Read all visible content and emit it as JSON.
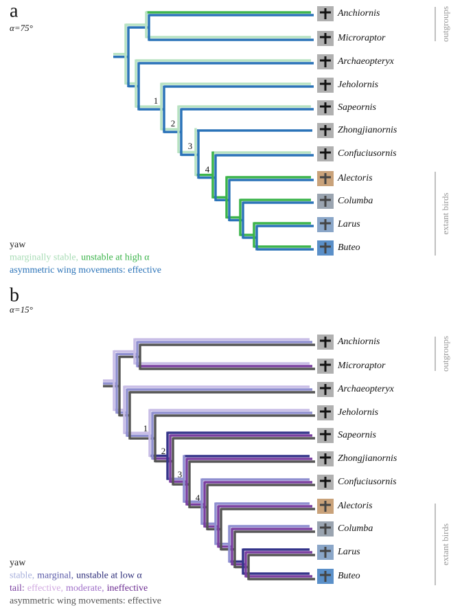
{
  "panels": [
    {
      "label": "a",
      "angle": "α=75°",
      "taxa": [
        "Anchiornis",
        "Microraptor",
        "Archaeopteryx",
        "Jeholornis",
        "Sapeornis",
        "Zhongjianornis",
        "Confuciusornis",
        "Alectoris",
        "Columba",
        "Larus",
        "Buteo"
      ],
      "node_labels": [
        "1",
        "2",
        "3",
        "4"
      ],
      "groups": [
        "outgroups",
        "extant birds"
      ],
      "legend": [
        [
          {
            "text": "yaw",
            "color": "#222222"
          }
        ],
        [
          {
            "text": "marginally stable,",
            "color": "#a9dcb6"
          },
          {
            "text": "unstable at high α",
            "color": "#3cb44b"
          }
        ],
        [
          {
            "text": "asymmetric wing movements: effective",
            "color": "#2b73b8"
          }
        ]
      ]
    },
    {
      "label": "b",
      "angle": "α=15°",
      "taxa": [
        "Anchiornis",
        "Microraptor",
        "Archaeopteryx",
        "Jeholornis",
        "Sapeornis",
        "Zhongjianornis",
        "Confuciusornis",
        "Alectoris",
        "Columba",
        "Larus",
        "Buteo"
      ],
      "node_labels": [
        "1",
        "2",
        "3",
        "4"
      ],
      "groups": [
        "outgroups",
        "extant birds"
      ],
      "legend": [
        [
          {
            "text": "yaw",
            "color": "#222222"
          }
        ],
        [
          {
            "text": "stable,",
            "color": "#a8b0dc"
          },
          {
            "text": "marginal,",
            "color": "#5a5aa8"
          },
          {
            "text": "unstable at low α",
            "color": "#2e2e7a"
          }
        ],
        [
          {
            "text": "tail:",
            "color": "#7a3fa0"
          },
          {
            "text": "effective,",
            "color": "#d0a8e0"
          },
          {
            "text": "moderate,",
            "color": "#a070c8"
          },
          {
            "text": "ineffective",
            "color": "#6a2a90"
          }
        ],
        [
          {
            "text": "asymmetric wing movements: effective",
            "color": "#555555"
          }
        ]
      ]
    }
  ]
}
